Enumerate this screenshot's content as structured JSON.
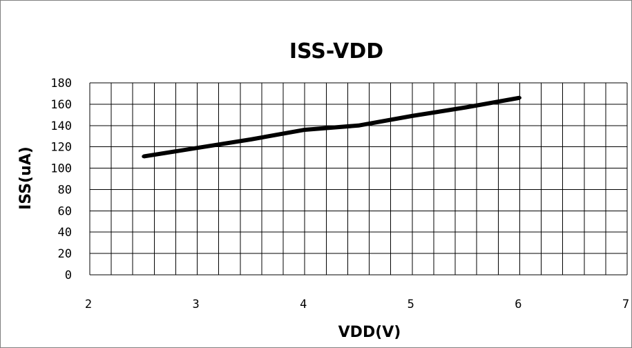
{
  "chart_data": {
    "type": "line",
    "title": "ISS-VDD",
    "xlabel": "VDD(V)",
    "ylabel": "ISS(uA)",
    "xlim": [
      2,
      7
    ],
    "ylim": [
      0,
      180
    ],
    "x_ticks": [
      "2",
      "3",
      "4",
      "5",
      "6",
      "7"
    ],
    "y_ticks": [
      "180",
      "160",
      "140",
      "120",
      "100",
      "80",
      "60",
      "40",
      "20",
      "0"
    ],
    "grid": true,
    "legend": "none",
    "series": [
      {
        "color": "#000000",
        "x": [
          2.5,
          3.0,
          3.5,
          4.0,
          4.5,
          5.0,
          5.5,
          6.0
        ],
        "y": [
          111,
          119,
          127,
          136,
          140,
          149,
          157,
          166
        ]
      }
    ]
  }
}
